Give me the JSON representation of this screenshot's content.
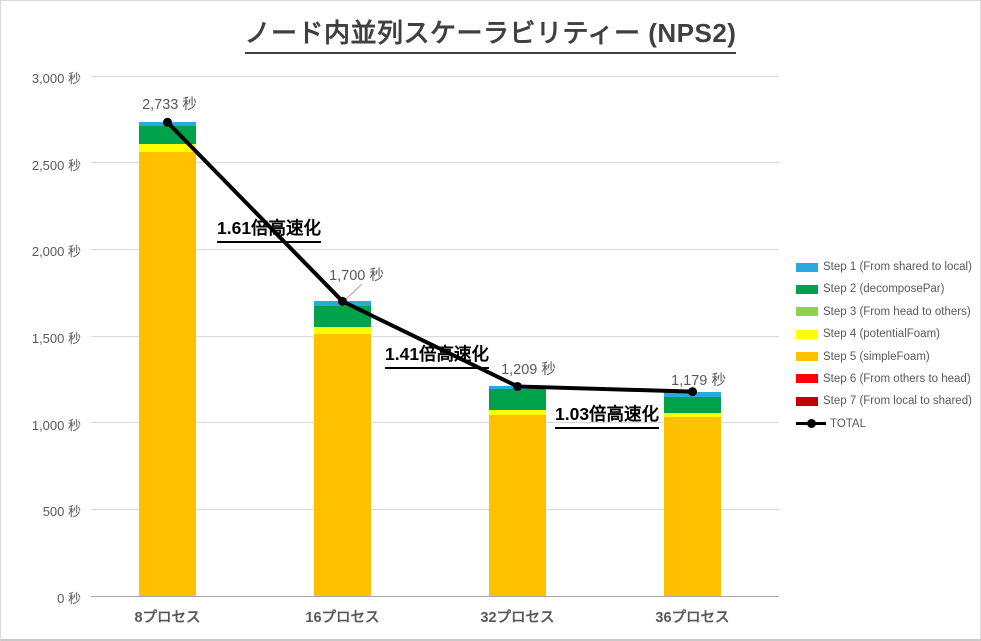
{
  "title": "ノード内並列スケーラビリティー (NPS2)",
  "chart_data": {
    "type": "bar",
    "subtype": "stacked-column-with-line",
    "title": "ノード内並列スケーラビリティー (NPS2)",
    "categories": [
      "8プロセス",
      "16プロセス",
      "32プロセス",
      "36プロセス"
    ],
    "series": [
      {
        "name": "Step 1 (From shared to local)",
        "color": "#29A9E0",
        "values": [
          23,
          25,
          17,
          29
        ]
      },
      {
        "name": "Step 2 (decomposePar)",
        "color": "#00A14B",
        "values": [
          104,
          122,
          121,
          95
        ]
      },
      {
        "name": "Step 3 (From head to others)",
        "color": "#92D050",
        "values": [
          0,
          0,
          0,
          0
        ]
      },
      {
        "name": "Step 4 (potentialFoam)",
        "color": "#FFFF00",
        "values": [
          46,
          42,
          29,
          23
        ]
      },
      {
        "name": "Step 5 (simpleFoam)",
        "color": "#FFC000",
        "values": [
          2560,
          1511,
          1042,
          1032
        ]
      },
      {
        "name": "Step 6 (From others to head)",
        "color": "#FF0000",
        "values": [
          0,
          0,
          0,
          0
        ]
      },
      {
        "name": "Step 7 (From local to shared)",
        "color": "#C00000",
        "values": [
          0,
          0,
          0,
          0
        ]
      }
    ],
    "stack_order": "Step 7 at bottom through Step 1 at top (Steps 3, 6, 7 are zero and not visible)",
    "line_series": {
      "name": "TOTAL",
      "color": "#000000",
      "values": [
        2733,
        1700,
        1209,
        1179
      ]
    },
    "data_labels": [
      "2,733 秒",
      "1,700 秒",
      "1,209 秒",
      "1,179 秒"
    ],
    "ylim": [
      0,
      3000
    ],
    "ytick_step": 500,
    "yticks": [
      {
        "value": 0,
        "label": "0 秒"
      },
      {
        "value": 500,
        "label": "500 秒"
      },
      {
        "value": 1000,
        "label": "1,000 秒"
      },
      {
        "value": 1500,
        "label": "1,500 秒"
      },
      {
        "value": 2000,
        "label": "2,000 秒"
      },
      {
        "value": 2500,
        "label": "2,500 秒"
      },
      {
        "value": 3000,
        "label": "3,000 秒"
      }
    ],
    "grid": true,
    "legend_position": "right"
  },
  "annotations": [
    {
      "text": "1.61倍高速化"
    },
    {
      "text": "1.41倍高速化"
    },
    {
      "text": "1.03倍高速化"
    }
  ],
  "legend": {
    "total_label": "TOTAL"
  },
  "colors": {
    "grid": "#D9D9D9",
    "axis_line": "#A6A6A6",
    "tick_text": "#595959",
    "title_text": "#404040",
    "annotation_text": "#000000"
  }
}
